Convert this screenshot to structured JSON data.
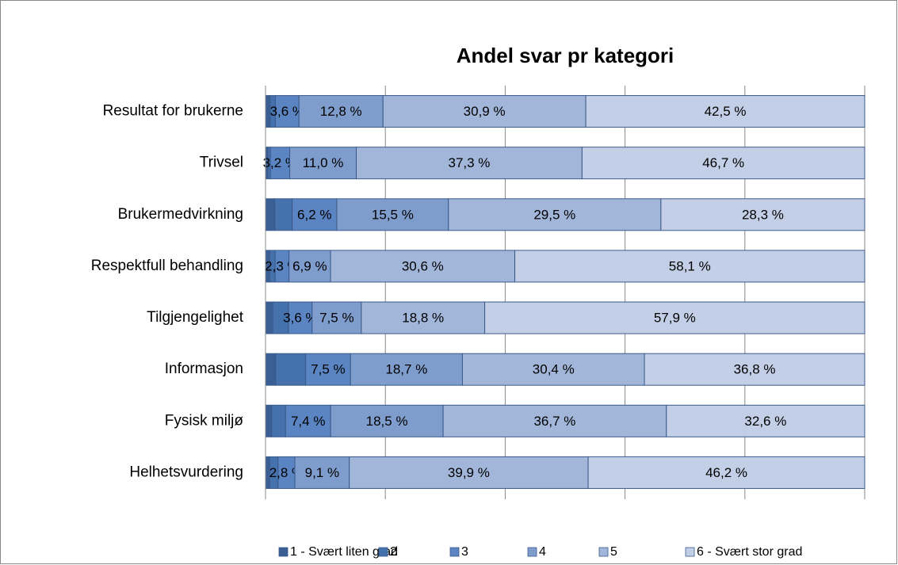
{
  "chart_data": {
    "type": "stacked-bar-100",
    "orientation": "horizontal",
    "title": "Andel svar pr kategori",
    "categories": [
      "Resultat for brukerne",
      "Trivsel",
      "Brukermedvirkning",
      "Respektfull behandling",
      "Tilgjengelighet",
      "Informasjon",
      "Fysisk miljø",
      "Helhetsvurdering"
    ],
    "xlim": [
      0,
      100
    ],
    "xticks": [
      0,
      20,
      40,
      60,
      80,
      100
    ],
    "grid": true,
    "legend": "bottom",
    "series": [
      {
        "name": "1 - Svært liten grad",
        "color": "#3a5f95",
        "values": [
          0.7,
          0.4,
          1.3,
          0.7,
          1.1,
          1.7,
          1.0,
          0.7
        ],
        "value_labels": [
          null,
          null,
          null,
          null,
          null,
          null,
          null,
          null
        ]
      },
      {
        "name": "2",
        "color": "#4571ad",
        "values": [
          0.8,
          0.4,
          2.4,
          0.9,
          2.4,
          5.0,
          2.3,
          1.4
        ],
        "value_labels": [
          null,
          null,
          null,
          null,
          null,
          null,
          null,
          null
        ]
      },
      {
        "name": "3",
        "color": "#5a85c2",
        "values": [
          3.6,
          3.2,
          6.2,
          2.3,
          3.6,
          7.5,
          7.4,
          2.8
        ],
        "value_labels": [
          "3,6 %",
          "3,2 %",
          "6,2 %",
          "2,3 %",
          "3,6 %",
          "7,5 %",
          "7,4 %",
          "2,8 %"
        ]
      },
      {
        "name": "4",
        "color": "#7f9dcc",
        "values": [
          12.8,
          11.0,
          15.5,
          6.9,
          7.5,
          18.7,
          18.5,
          9.1
        ],
        "value_labels": [
          "12,8 %",
          "11,0 %",
          "15,5 %",
          "6,9 %",
          "7,5 %",
          "18,7 %",
          "18,5 %",
          "9,1 %"
        ]
      },
      {
        "name": "5",
        "color": "#a2b6da",
        "values": [
          30.9,
          37.3,
          29.5,
          30.6,
          18.8,
          30.4,
          36.7,
          39.9
        ],
        "value_labels": [
          "30,9 %",
          "37,3 %",
          "29,5 %",
          "30,6 %",
          "18,8 %",
          "30,4 %",
          "36,7 %",
          "39,9 %"
        ]
      },
      {
        "name": "6 - Svært stor grad",
        "color": "#c3cfe6",
        "values": [
          42.5,
          46.7,
          28.3,
          58.1,
          57.9,
          36.8,
          32.6,
          46.2
        ],
        "value_labels": [
          "42,5 %",
          "46,7 %",
          "28,3 %",
          "58,1 %",
          "57,9 %",
          "36,8 %",
          "32,6 %",
          "46,2 %"
        ]
      }
    ]
  }
}
